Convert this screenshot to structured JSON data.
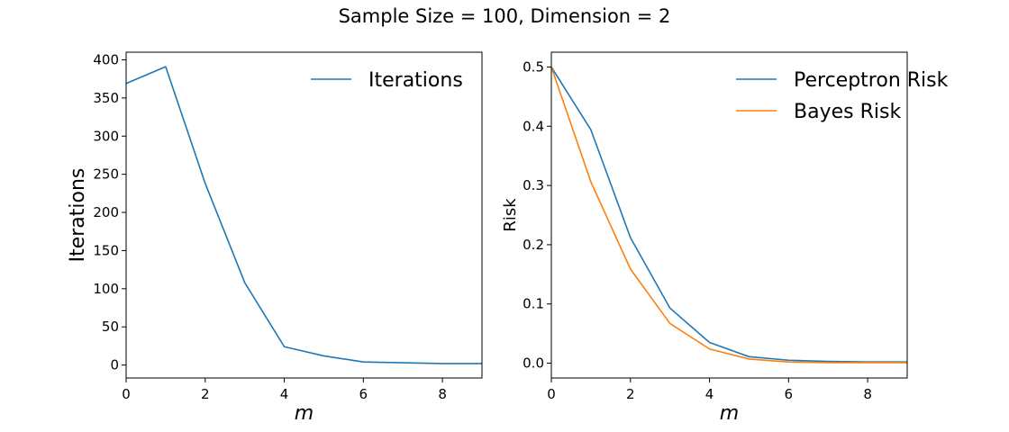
{
  "figure": {
    "title": "Sample Size = 100, Dimension = 2"
  },
  "chart_data": [
    {
      "type": "line",
      "xlabel": "m",
      "ylabel": "Iterations",
      "xlim": [
        0,
        9
      ],
      "ylim": [
        -17,
        410
      ],
      "xticks": [
        0,
        2,
        4,
        6,
        8
      ],
      "yticks": [
        0,
        50,
        100,
        150,
        200,
        250,
        300,
        350,
        400
      ],
      "grid": false,
      "legend_position": "top-right",
      "x": [
        0,
        1,
        2,
        3,
        4,
        5,
        6,
        7,
        8,
        9
      ],
      "series": [
        {
          "name": "Iterations",
          "color": "#1f77b4",
          "values": [
            369,
            391,
            238,
            108,
            24,
            12,
            4,
            3,
            2,
            2
          ]
        }
      ]
    },
    {
      "type": "line",
      "xlabel": "m",
      "ylabel": "Risk",
      "xlim": [
        0,
        9
      ],
      "ylim": [
        -0.025,
        0.525
      ],
      "xticks": [
        0,
        2,
        4,
        6,
        8
      ],
      "yticks": [
        0.0,
        0.1,
        0.2,
        0.3,
        0.4,
        0.5
      ],
      "grid": false,
      "legend_position": "top-right",
      "x": [
        0,
        1,
        2,
        3,
        4,
        5,
        6,
        7,
        8,
        9
      ],
      "series": [
        {
          "name": "Perceptron Risk",
          "color": "#1f77b4",
          "values": [
            0.5,
            0.394,
            0.212,
            0.093,
            0.035,
            0.011,
            0.005,
            0.003,
            0.002,
            0.002
          ]
        },
        {
          "name": "Bayes Risk",
          "color": "#ff7f0e",
          "values": [
            0.5,
            0.306,
            0.159,
            0.067,
            0.024,
            0.007,
            0.002,
            0.001,
            0.001,
            0.001
          ]
        }
      ]
    }
  ]
}
